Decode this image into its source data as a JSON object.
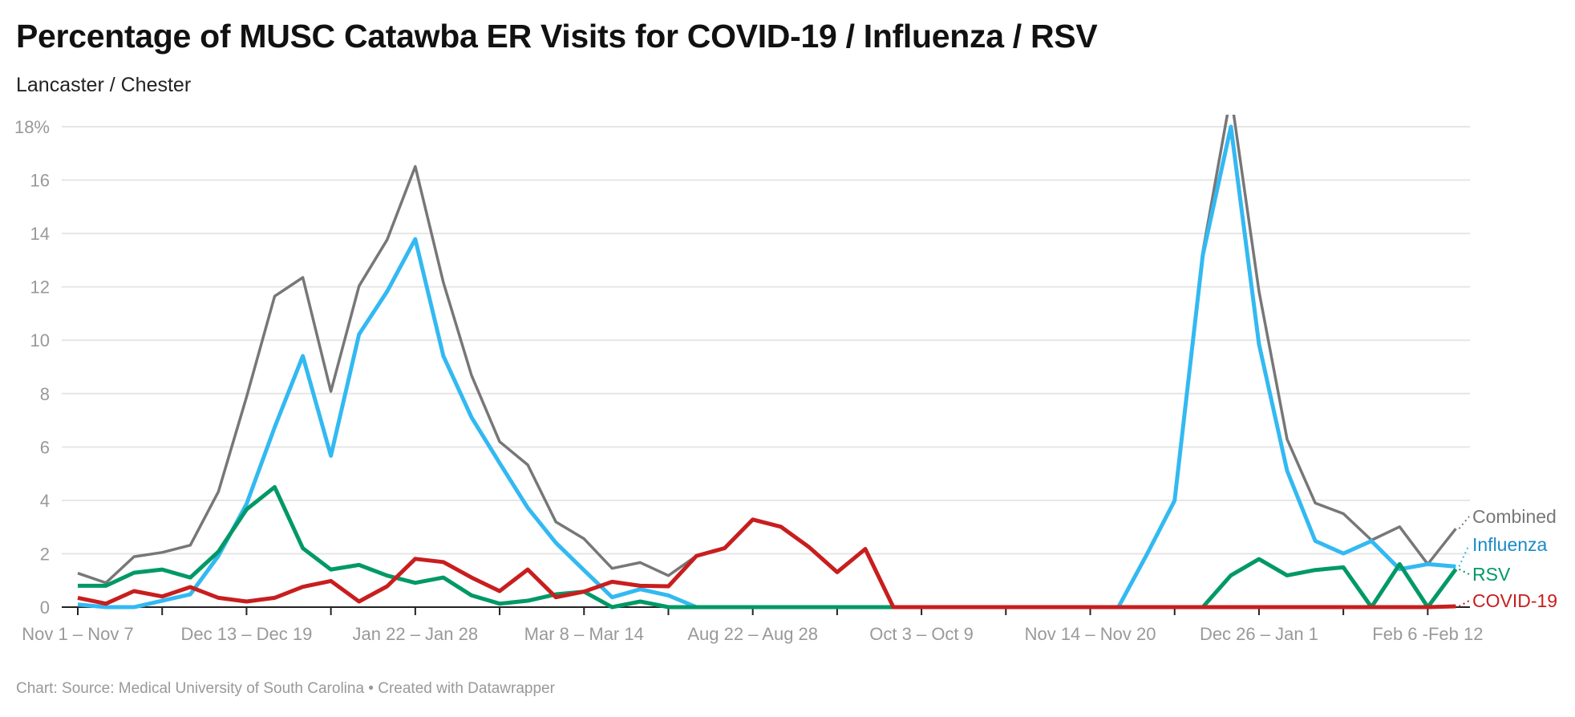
{
  "title": "Percentage of MUSC Catawba ER Visits for COVID-19 / Influenza / RSV",
  "subtitle": "Lancaster / Chester",
  "footer": "Chart: Source: Medical University of South Carolina • Created with Datawrapper",
  "chart_data": {
    "type": "line",
    "title": "Percentage of MUSC Catawba ER Visits for COVID-19 / Influenza / RSV",
    "subtitle": "Lancaster / Chester",
    "ylim": [
      0,
      18
    ],
    "y_ticks": [
      0,
      2,
      4,
      6,
      8,
      10,
      12,
      14,
      16,
      18
    ],
    "y_tick_labels": [
      "0",
      "2",
      "4",
      "6",
      "8",
      "10",
      "12",
      "14",
      "16",
      "18%"
    ],
    "grid": true,
    "legend": "direct labels at right end of lines",
    "x_tick_every": 3,
    "x_labels": [
      {
        "index": 0,
        "label": "Nov 1 – Nov 7"
      },
      {
        "index": 6,
        "label": "Dec 13 – Dec 19"
      },
      {
        "index": 12,
        "label": "Jan 22 – Jan 28"
      },
      {
        "index": 18,
        "label": "Mar 8 – Mar 14"
      },
      {
        "index": 24,
        "label": "Aug 22 – Aug 28"
      },
      {
        "index": 30,
        "label": "Oct 3 – Oct 9"
      },
      {
        "index": 36,
        "label": "Nov 14 – Nov 20"
      },
      {
        "index": 42,
        "label": "Dec 26 – Jan 1"
      },
      {
        "index": 48,
        "label": "Feb 6 -Feb 12"
      }
    ],
    "series": [
      {
        "name": "Combined",
        "color": "#777777",
        "label_color": "#777777",
        "values": [
          1.27,
          0.91,
          1.89,
          2.05,
          2.32,
          4.33,
          7.87,
          11.65,
          12.35,
          8.08,
          12.03,
          13.77,
          16.51,
          12.16,
          8.68,
          6.2,
          5.33,
          3.19,
          2.56,
          1.45,
          1.67,
          1.18,
          1.92,
          2.21,
          3.28,
          3.01,
          2.25,
          1.31,
          2.18,
          0,
          0,
          0,
          0,
          0,
          0,
          0,
          0,
          0,
          1.95,
          3.99,
          13.3,
          19.2,
          11.84,
          6.29,
          3.9,
          3.5,
          2.51,
          3.01,
          1.61,
          2.94
        ]
      },
      {
        "name": "Influenza",
        "color": "#33b9f2",
        "label_color": "#1a8ac7",
        "values": [
          0.1,
          0,
          0,
          0.24,
          0.48,
          1.92,
          3.86,
          6.74,
          9.41,
          5.67,
          10.22,
          11.83,
          13.79,
          9.41,
          7.11,
          5.4,
          3.72,
          2.41,
          1.38,
          0.37,
          0.67,
          0.44,
          0,
          0,
          0,
          0,
          0,
          0,
          0,
          0,
          0,
          0,
          0,
          0,
          0,
          0,
          0,
          0,
          1.95,
          3.99,
          13.18,
          18.0,
          9.86,
          5.11,
          2.48,
          2.01,
          2.48,
          1.42,
          1.61,
          1.52
        ]
      },
      {
        "name": "RSV",
        "color": "#009966",
        "label_color": "#009966",
        "values": [
          0.8,
          0.8,
          1.29,
          1.41,
          1.11,
          2.08,
          3.66,
          4.5,
          2.21,
          1.41,
          1.58,
          1.18,
          0.91,
          1.11,
          0.44,
          0.13,
          0.24,
          0.48,
          0.58,
          0,
          0.21,
          0,
          0,
          0,
          0,
          0,
          0,
          0,
          0,
          0,
          0,
          0,
          0,
          0,
          0,
          0,
          0,
          0,
          0,
          0,
          0,
          1.19,
          1.8,
          1.19,
          1.39,
          1.49,
          0,
          1.61,
          0,
          1.42
        ]
      },
      {
        "name": "COVID-19",
        "color": "#c81e1e",
        "label_color": "#c81e1e",
        "values": [
          0.35,
          0.13,
          0.6,
          0.4,
          0.75,
          0.35,
          0.21,
          0.35,
          0.76,
          0.98,
          0.21,
          0.78,
          1.81,
          1.69,
          1.11,
          0.6,
          1.41,
          0.37,
          0.58,
          0.95,
          0.8,
          0.78,
          1.92,
          2.21,
          3.28,
          3.01,
          2.25,
          1.31,
          2.18,
          0,
          0,
          0,
          0,
          0,
          0,
          0,
          0,
          0,
          0,
          0,
          0,
          0,
          0,
          0,
          0,
          0,
          0,
          0,
          0,
          0.03
        ]
      }
    ]
  }
}
